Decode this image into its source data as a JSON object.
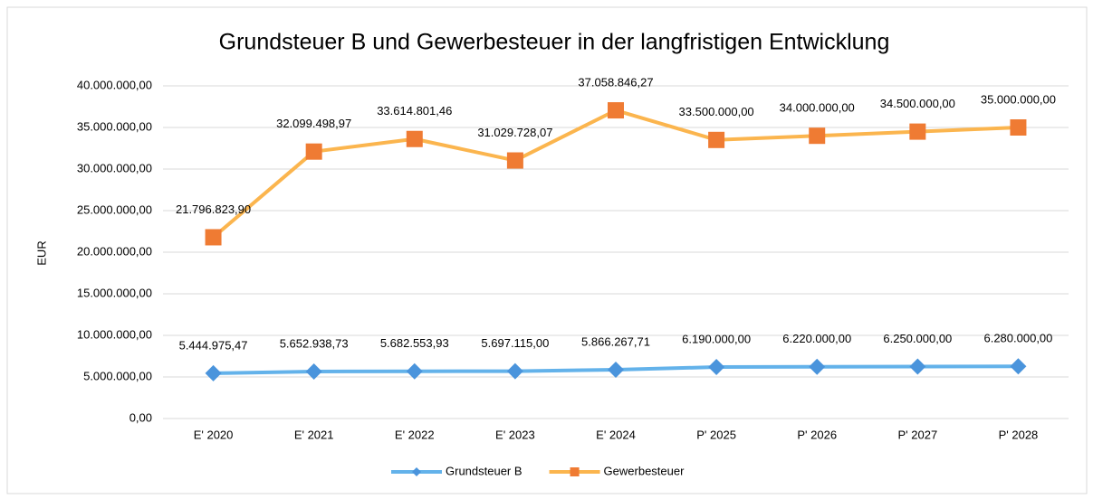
{
  "chart_data": {
    "type": "line",
    "title": "Grundsteuer B und Gewerbesteuer in der langfristigen Entwicklung",
    "y_label": "EUR",
    "categories": [
      "E' 2020",
      "E' 2021",
      "E' 2022",
      "E' 2023",
      "E' 2024",
      "P' 2025",
      "P' 2026",
      "P' 2027",
      "P' 2028"
    ],
    "series": [
      {
        "name": "Grundsteuer B",
        "color": "#63b2ea",
        "marker": "diamond",
        "marker_color": "#4a94dc",
        "values": [
          5444975.47,
          5652938.73,
          5682553.93,
          5697115.0,
          5866267.71,
          6190000.0,
          6220000.0,
          6250000.0,
          6280000.0
        ],
        "value_labels": [
          "5.444.975,47",
          "5.652.938,73",
          "5.682.553,93",
          "5.697.115,00",
          "5.866.267,71",
          "6.190.000,00",
          "6.220.000,00",
          "6.250.000,00",
          "6.280.000,00"
        ]
      },
      {
        "name": "Gewerbesteuer",
        "color": "#fbb54e",
        "marker": "square",
        "marker_color": "#ef7b33",
        "values": [
          21796823.9,
          32099498.97,
          33614801.46,
          31029728.07,
          37058846.27,
          33500000.0,
          34000000.0,
          34500000.0,
          35000000.0
        ],
        "value_labels": [
          "21.796.823,90",
          "32.099.498,97",
          "33.614.801,46",
          "31.029.728,07",
          "37.058.846,27",
          "33.500.000,00",
          "34.000.000,00",
          "34.500.000,00",
          "35.000.000,00"
        ]
      }
    ],
    "ylim": [
      0,
      40000000
    ],
    "yticks": [
      {
        "value": 0,
        "label": "0,00"
      },
      {
        "value": 5000000,
        "label": "5.000.000,00"
      },
      {
        "value": 10000000,
        "label": "10.000.000,00"
      },
      {
        "value": 15000000,
        "label": "15.000.000,00"
      },
      {
        "value": 20000000,
        "label": "20.000.000,00"
      },
      {
        "value": 25000000,
        "label": "25.000.000,00"
      },
      {
        "value": 30000000,
        "label": "30.000.000,00"
      },
      {
        "value": 35000000,
        "label": "35.000.000,00"
      },
      {
        "value": 40000000,
        "label": "40.000.000,00"
      }
    ],
    "grid": true,
    "legend": "bottom"
  }
}
